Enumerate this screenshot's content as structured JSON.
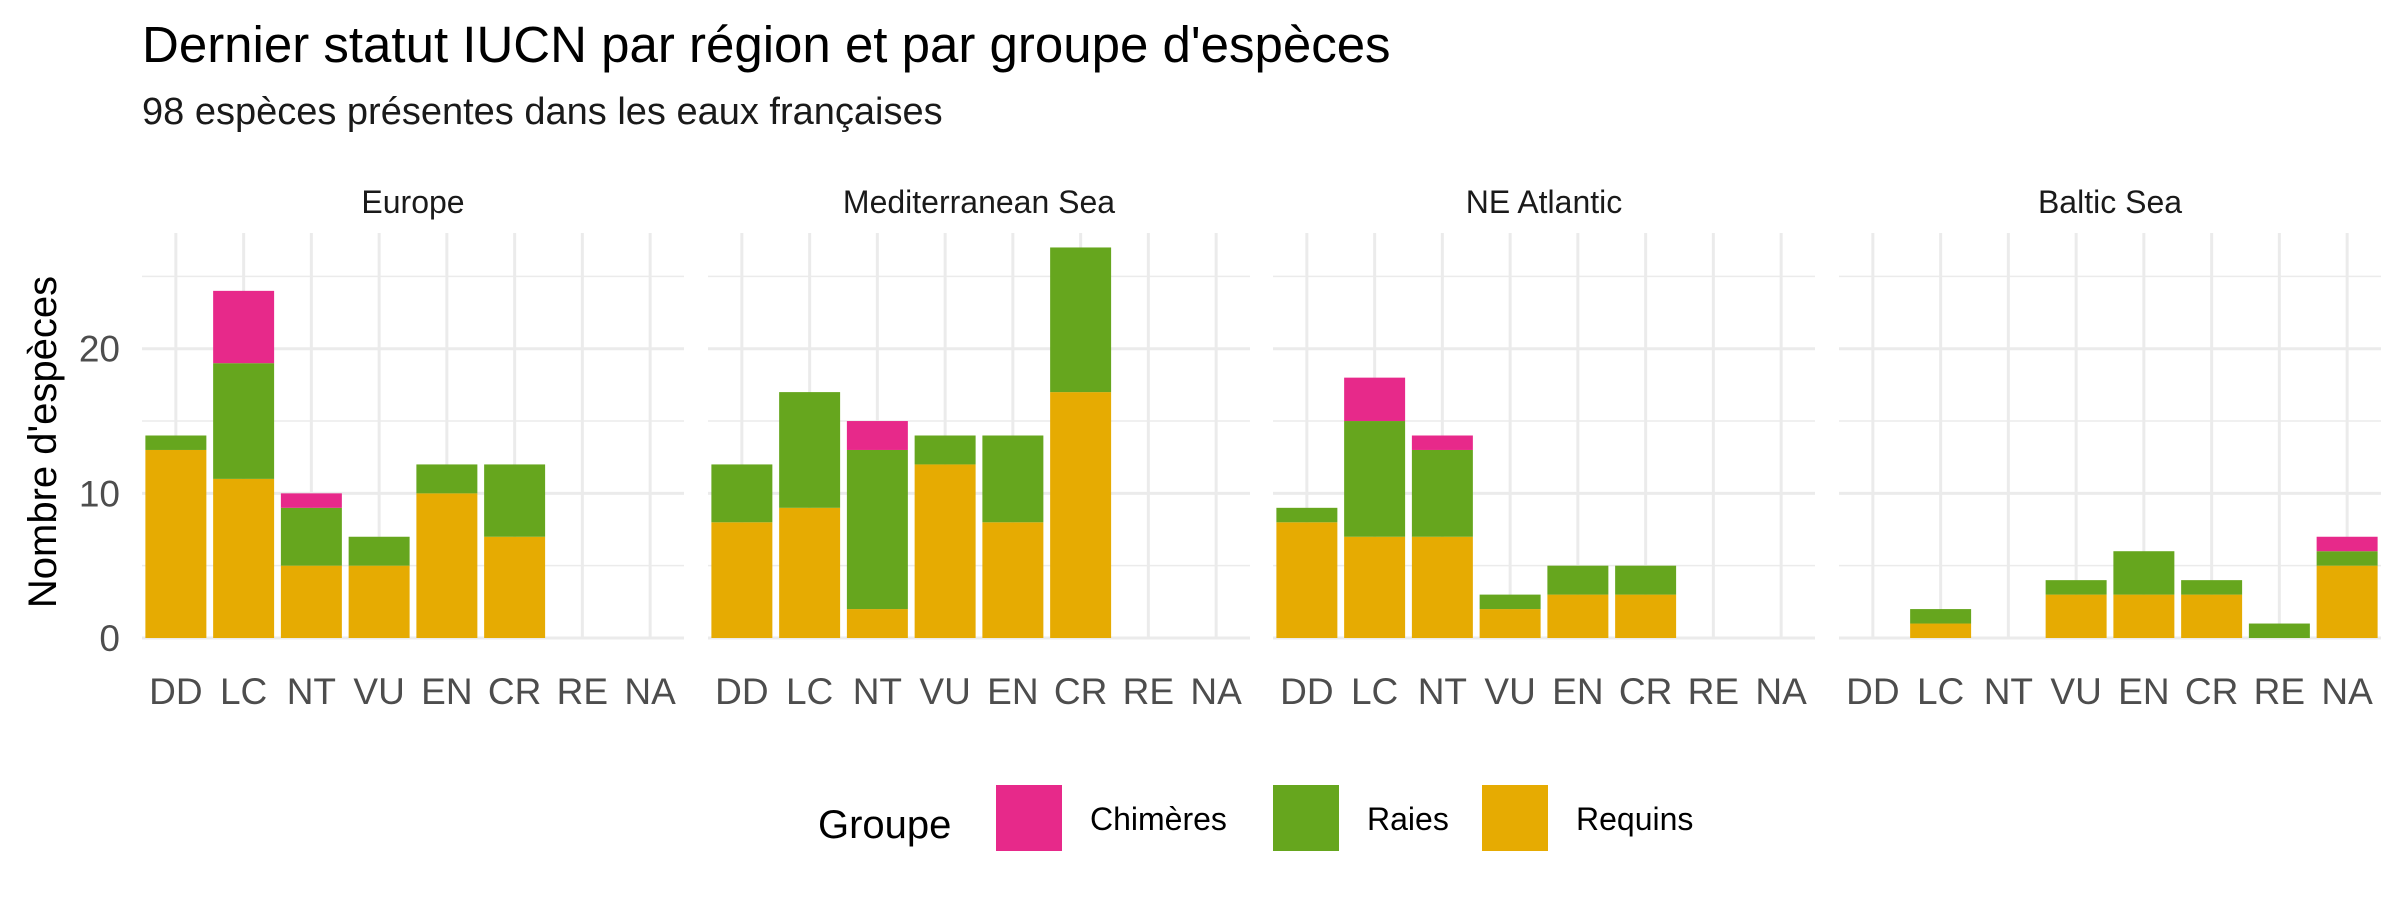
{
  "title": "Dernier statut IUCN par région et par groupe d'espèces",
  "subtitle": "98 espèces présentes dans les eaux françaises",
  "chart_data": {
    "type": "bar",
    "stacked": true,
    "ylabel": "Nombre d'espèces",
    "ylim": [
      0,
      28
    ],
    "yticks": [
      0,
      10,
      20
    ],
    "grid": true,
    "categories": [
      "DD",
      "LC",
      "NT",
      "VU",
      "EN",
      "CR",
      "RE",
      "NA"
    ],
    "legend": {
      "title": "Groupe",
      "position": "bottom",
      "entries": [
        "Chimères",
        "Raies",
        "Requins"
      ]
    },
    "colors": {
      "Chimères": "#e7298a",
      "Raies": "#66a61e",
      "Requins": "#e6ab02"
    },
    "panels": [
      {
        "name": "Europe",
        "series": [
          {
            "name": "Requins",
            "values": [
              13,
              11,
              5,
              5,
              10,
              7,
              0,
              0
            ]
          },
          {
            "name": "Raies",
            "values": [
              1,
              8,
              4,
              2,
              2,
              5,
              0,
              0
            ]
          },
          {
            "name": "Chimères",
            "values": [
              0,
              5,
              1,
              0,
              0,
              0,
              0,
              0
            ]
          }
        ]
      },
      {
        "name": "Mediterranean Sea",
        "series": [
          {
            "name": "Requins",
            "values": [
              8,
              9,
              2,
              12,
              8,
              17,
              0,
              0
            ]
          },
          {
            "name": "Raies",
            "values": [
              4,
              8,
              11,
              2,
              6,
              10,
              0,
              0
            ]
          },
          {
            "name": "Chimères",
            "values": [
              0,
              0,
              2,
              0,
              0,
              0,
              0,
              0
            ]
          }
        ]
      },
      {
        "name": "NE Atlantic",
        "series": [
          {
            "name": "Requins",
            "values": [
              8,
              7,
              7,
              2,
              3,
              3,
              0,
              0
            ]
          },
          {
            "name": "Raies",
            "values": [
              1,
              8,
              6,
              1,
              2,
              2,
              0,
              0
            ]
          },
          {
            "name": "Chimères",
            "values": [
              0,
              3,
              1,
              0,
              0,
              0,
              0,
              0
            ]
          }
        ]
      },
      {
        "name": "Baltic Sea",
        "series": [
          {
            "name": "Requins",
            "values": [
              0,
              1,
              0,
              3,
              3,
              3,
              0,
              5
            ]
          },
          {
            "name": "Raies",
            "values": [
              0,
              1,
              0,
              1,
              3,
              1,
              1,
              1
            ]
          },
          {
            "name": "Chimères",
            "values": [
              0,
              0,
              0,
              0,
              0,
              0,
              0,
              1
            ]
          }
        ]
      }
    ]
  }
}
